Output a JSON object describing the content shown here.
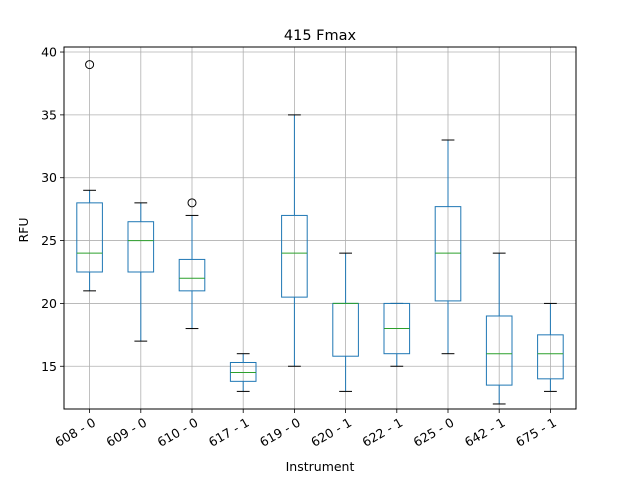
{
  "chart_data": {
    "type": "box",
    "title": "415 Fmax",
    "xlabel": "Instrument",
    "ylabel": "RFU",
    "ylim": [
      11.6,
      40.4
    ],
    "yticks": [
      15,
      20,
      25,
      30,
      35,
      40
    ],
    "grid": true,
    "colors": {
      "box": "#1f77b4",
      "median": "#2ca02c",
      "whisker": "#1f77b4",
      "cap": "#000000",
      "grid": "#b0b0b0"
    },
    "categories": [
      "608 - 0",
      "609 - 0",
      "610 - 0",
      "617 - 1",
      "619 - 0",
      "620 - 1",
      "622 - 1",
      "625 - 0",
      "642 - 1",
      "675 - 1"
    ],
    "boxes": [
      {
        "whislo": 21,
        "q1": 22.5,
        "med": 24,
        "q3": 28,
        "whishi": 29,
        "fliers": [
          39
        ]
      },
      {
        "whislo": 17,
        "q1": 22.5,
        "med": 25,
        "q3": 26.5,
        "whishi": 28,
        "fliers": []
      },
      {
        "whislo": 18,
        "q1": 21,
        "med": 22,
        "q3": 23.5,
        "whishi": 27,
        "fliers": [
          28
        ]
      },
      {
        "whislo": 13,
        "q1": 13.8,
        "med": 14.5,
        "q3": 15.3,
        "whishi": 16,
        "fliers": []
      },
      {
        "whislo": 15,
        "q1": 20.5,
        "med": 24,
        "q3": 27,
        "whishi": 35,
        "fliers": []
      },
      {
        "whislo": 13,
        "q1": 15.8,
        "med": 20,
        "q3": 20,
        "whishi": 24,
        "fliers": []
      },
      {
        "whislo": 15,
        "q1": 16,
        "med": 18,
        "q3": 20,
        "whishi": 20,
        "fliers": []
      },
      {
        "whislo": 16,
        "q1": 20.2,
        "med": 24,
        "q3": 27.7,
        "whishi": 33,
        "fliers": []
      },
      {
        "whislo": 12,
        "q1": 13.5,
        "med": 16,
        "q3": 19,
        "whishi": 24,
        "fliers": []
      },
      {
        "whislo": 13,
        "q1": 14,
        "med": 16,
        "q3": 17.5,
        "whishi": 20,
        "fliers": []
      }
    ]
  }
}
